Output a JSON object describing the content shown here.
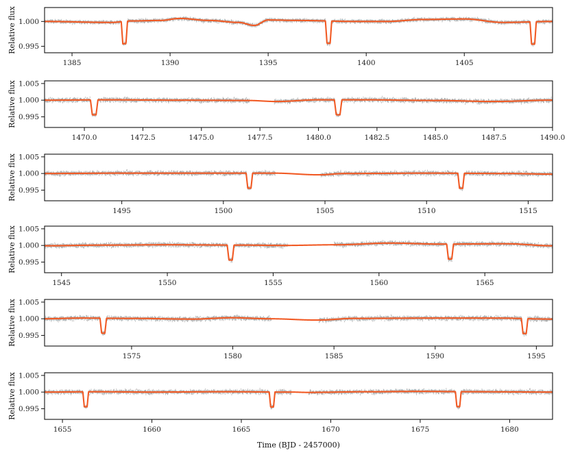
{
  "colors": {
    "data": "#111111",
    "model": "#f15a24",
    "axis": "#111111"
  },
  "chart_data": [
    {
      "type": "scatter",
      "xlabel": "",
      "ylabel": "Relative flux",
      "xlim": [
        1383.6,
        1409.5
      ],
      "ylim": [
        0.9937,
        1.0028
      ],
      "xticks": [
        1385,
        1390,
        1395,
        1400,
        1405
      ],
      "xtick_labels": [
        "1385",
        "1390",
        "1395",
        "1400",
        "1405"
      ],
      "yticks": [
        0.995,
        1.0
      ],
      "ytick_labels": [
        "0.995",
        "1.000"
      ],
      "series": [
        {
          "points": [
            [
              1383.6,
              1.0
            ],
            [
              1387.0,
              0.9998
            ],
            [
              1388.0,
              1.0001
            ],
            [
              1389.5,
              1.0002
            ],
            [
              1390.5,
              1.0006
            ],
            [
              1392.0,
              1.0002
            ],
            [
              1393.5,
              0.9998
            ],
            [
              1394.3,
              0.9992
            ],
            [
              1395.0,
              1.0003
            ],
            [
              1396.5,
              1.0002
            ],
            [
              1399.5,
              1.0
            ],
            [
              1401.0,
              1.0
            ],
            [
              1403.0,
              1.0004
            ],
            [
              1405.0,
              1.0005
            ],
            [
              1407.0,
              0.9998
            ],
            [
              1409.5,
              1.0
            ]
          ]
        }
      ],
      "transits": [
        1387.67,
        1398.08,
        1408.51
      ],
      "depth": 0.0045,
      "gaps": []
    },
    {
      "type": "scatter",
      "xlabel": "",
      "ylabel": "Relative flux",
      "xlim": [
        1468.3,
        1490.0
      ],
      "ylim": [
        0.9918,
        1.0058
      ],
      "xticks": [
        1470.0,
        1472.5,
        1475.0,
        1477.5,
        1480.0,
        1482.5,
        1485.0,
        1487.5,
        1490.0
      ],
      "xtick_labels": [
        "1470.0",
        "1472.5",
        "1475.0",
        "1477.5",
        "1480.0",
        "1482.5",
        "1485.0",
        "1487.5",
        "1490.0"
      ],
      "yticks": [
        0.995,
        1.0,
        1.005
      ],
      "ytick_labels": [
        "0.995",
        "1.000",
        "1.005"
      ],
      "series": [
        {
          "points": [
            [
              1468.3,
              1.0
            ],
            [
              1471.0,
              1.0001
            ],
            [
              1474.0,
              1.0
            ],
            [
              1477.0,
              0.9999
            ],
            [
              1478.2,
              0.9996
            ],
            [
              1480.0,
              1.0001
            ],
            [
              1482.0,
              1.0001
            ],
            [
              1485.0,
              0.9999
            ],
            [
              1487.5,
              0.9996
            ],
            [
              1490.0,
              1.0
            ]
          ]
        }
      ],
      "transits": [
        1470.42,
        1480.84
      ],
      "depth": 0.0045,
      "gaps": [
        [
          1477.05,
          1478.1
        ]
      ]
    },
    {
      "type": "scatter",
      "xlabel": "",
      "ylabel": "Relative flux",
      "xlim": [
        1491.2,
        1516.2
      ],
      "ylim": [
        0.9918,
        1.0058
      ],
      "xticks": [
        1495,
        1500,
        1505,
        1510,
        1515
      ],
      "xtick_labels": [
        "1495",
        "1500",
        "1505",
        "1510",
        "1515"
      ],
      "yticks": [
        0.995,
        1.0,
        1.005
      ],
      "ytick_labels": [
        "0.995",
        "1.000",
        "1.005"
      ],
      "series": [
        {
          "points": [
            [
              1491.2,
              1.0
            ],
            [
              1495.0,
              1.0001
            ],
            [
              1500.0,
              1.0001
            ],
            [
              1502.5,
              1.0001
            ],
            [
              1504.7,
              0.9996
            ],
            [
              1506.0,
              1.0
            ],
            [
              1510.0,
              1.0001
            ],
            [
              1514.0,
              1.0
            ],
            [
              1516.2,
              0.9998
            ]
          ]
        }
      ],
      "transits": [
        1501.28,
        1511.7
      ],
      "depth": 0.0045,
      "gaps": [
        [
          1502.55,
          1504.75
        ]
      ]
    },
    {
      "type": "scatter",
      "xlabel": "",
      "ylabel": "Relative flux",
      "xlim": [
        1544.2,
        1568.2
      ],
      "ylim": [
        0.9918,
        1.0058
      ],
      "xticks": [
        1545,
        1550,
        1555,
        1560,
        1565
      ],
      "xtick_labels": [
        "1545",
        "1550",
        "1555",
        "1560",
        "1565"
      ],
      "yticks": [
        0.995,
        1.0,
        1.005
      ],
      "ytick_labels": [
        "0.995",
        "1.000",
        "1.005"
      ],
      "series": [
        {
          "points": [
            [
              1544.2,
              0.9999
            ],
            [
              1547.0,
              1.0001
            ],
            [
              1550.0,
              1.0002
            ],
            [
              1553.5,
              1.0001
            ],
            [
              1555.5,
              1.0
            ],
            [
              1558.0,
              1.0002
            ],
            [
              1560.5,
              1.0007
            ],
            [
              1563.0,
              1.0004
            ],
            [
              1566.0,
              1.0005
            ],
            [
              1568.2,
              0.9999
            ]
          ]
        }
      ],
      "transits": [
        1552.99,
        1563.36
      ],
      "depth": 0.0045,
      "gaps": [
        [
          1555.7,
          1557.85
        ]
      ]
    },
    {
      "type": "scatter",
      "xlabel": "",
      "ylabel": "Relative flux",
      "xlim": [
        1570.7,
        1595.8
      ],
      "ylim": [
        0.9918,
        1.0058
      ],
      "xticks": [
        1575,
        1580,
        1585,
        1590,
        1595
      ],
      "xtick_labels": [
        "1575",
        "1580",
        "1585",
        "1590",
        "1595"
      ],
      "yticks": [
        0.995,
        1.0,
        1.005
      ],
      "ytick_labels": [
        "0.995",
        "1.000",
        "1.005"
      ],
      "series": [
        {
          "points": [
            [
              1570.7,
              1.0
            ],
            [
              1572.5,
              1.0002
            ],
            [
              1575.0,
              1.0001
            ],
            [
              1578.0,
              0.9999
            ],
            [
              1580.0,
              1.0003
            ],
            [
              1581.8,
              1.0
            ],
            [
              1584.2,
              0.9996
            ],
            [
              1586.0,
              1.0001
            ],
            [
              1590.0,
              1.0002
            ],
            [
              1593.0,
              1.0002
            ],
            [
              1595.8,
              0.9999
            ]
          ]
        }
      ],
      "transits": [
        1573.6,
        1594.42
      ],
      "depth": 0.0045,
      "gaps": [
        [
          1581.9,
          1584.25
        ]
      ]
    },
    {
      "type": "scatter",
      "xlabel": "Time (BJD - 2457000)",
      "ylabel": "Relative flux",
      "xlim": [
        1654.0,
        1682.4
      ],
      "ylim": [
        0.9918,
        1.0058
      ],
      "xticks": [
        1655,
        1660,
        1665,
        1670,
        1675,
        1680
      ],
      "xtick_labels": [
        "1655",
        "1660",
        "1665",
        "1670",
        "1675",
        "1680"
      ],
      "yticks": [
        0.995,
        1.0,
        1.005
      ],
      "ytick_labels": [
        "0.995",
        "1.000",
        "1.005"
      ],
      "series": [
        {
          "points": [
            [
              1654.0,
              1.0
            ],
            [
              1657.0,
              1.0001
            ],
            [
              1660.0,
              1.0
            ],
            [
              1664.0,
              1.0001
            ],
            [
              1667.8,
              1.0
            ],
            [
              1668.7,
              0.9999
            ],
            [
              1672.0,
              1.0001
            ],
            [
              1675.0,
              1.0002
            ],
            [
              1678.0,
              1.0001
            ],
            [
              1682.4,
              1.0
            ]
          ]
        }
      ],
      "transits": [
        1656.3,
        1666.72,
        1677.13
      ],
      "depth": 0.0045,
      "gaps": [
        [
          1667.8,
          1668.75
        ]
      ]
    }
  ]
}
